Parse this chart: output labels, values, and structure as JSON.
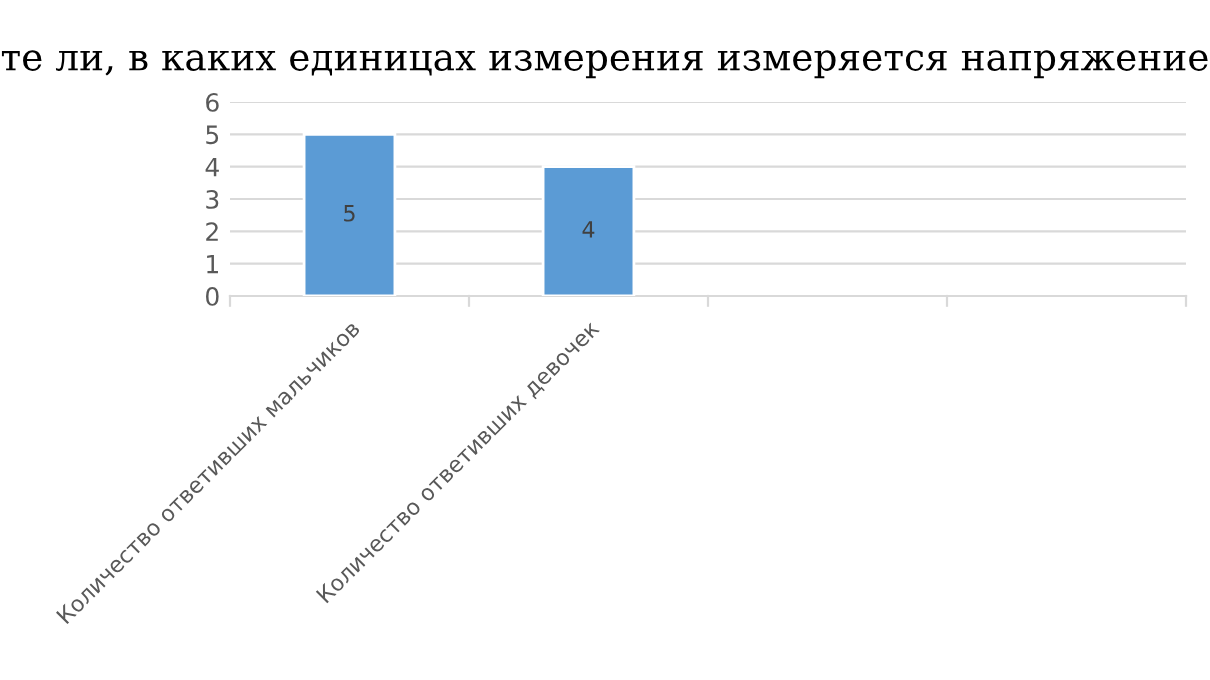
{
  "chart_data": {
    "type": "bar",
    "title": "те ли, в каких единицах измерения измеряется напряжение",
    "categories": [
      "Количество ответивших мальчиков",
      "Количество ответивших девочек",
      null,
      null
    ],
    "values": [
      5,
      4,
      null,
      null
    ],
    "color": "#5b9bd5",
    "data_labels": true,
    "ylim": [
      0,
      6
    ],
    "yticks": [
      0,
      1,
      2,
      3,
      4,
      5,
      6
    ],
    "grid": "y",
    "legend": false
  }
}
